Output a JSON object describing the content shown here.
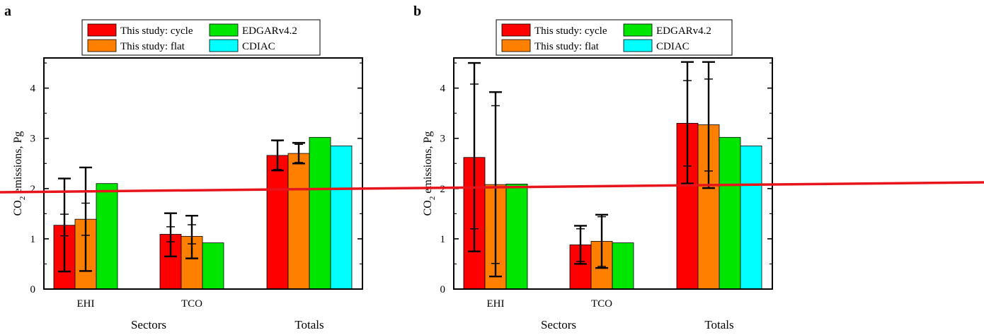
{
  "colors": {
    "cycle": "#ff0000",
    "flat": "#ff8000",
    "edgar": "#00e600",
    "cdiac": "#00ffff",
    "overlay_line": "#e8141b"
  },
  "legend": {
    "cycle": "This study: cycle",
    "flat": "This study: flat",
    "edgar": "EDGARv4.2",
    "cdiac": "CDIAC"
  },
  "chart_data": [
    {
      "panel_label": "a",
      "type": "bar",
      "categories": [
        "EHI",
        "TCO",
        "Totals"
      ],
      "group_labels": [
        "Sectors",
        "Totals"
      ],
      "ylabel": "CO2 emissions, Pg",
      "ylim": [
        0,
        4.6
      ],
      "yticks": [
        0,
        1,
        2,
        3,
        4
      ],
      "legend_position": "top-center",
      "series": [
        {
          "name": "This study: cycle",
          "key": "cycle",
          "values": [
            1.27,
            1.09,
            2.66
          ],
          "err_outer": [
            [
              0.35,
              2.2
            ],
            [
              0.65,
              1.51
            ],
            [
              2.36,
              2.96
            ]
          ],
          "err_inner": [
            [
              1.06,
              1.49
            ],
            [
              0.94,
              1.24
            ],
            [
              2.38,
              2.95
            ]
          ]
        },
        {
          "name": "This study: flat",
          "key": "flat",
          "values": [
            1.39,
            1.05,
            2.7
          ],
          "err_outer": [
            [
              0.36,
              2.42
            ],
            [
              0.61,
              1.46
            ],
            [
              2.5,
              2.91
            ]
          ],
          "err_inner": [
            [
              1.07,
              1.71
            ],
            [
              0.9,
              1.28
            ],
            [
              2.52,
              2.88
            ]
          ]
        },
        {
          "name": "EDGARv4.2",
          "key": "edgar",
          "values": [
            2.1,
            0.92,
            3.02
          ]
        },
        {
          "name": "CDIAC",
          "key": "cdiac",
          "values": [
            null,
            null,
            2.85
          ]
        }
      ]
    },
    {
      "panel_label": "b",
      "type": "bar",
      "categories": [
        "EHI",
        "TCO",
        "Totals"
      ],
      "group_labels": [
        "Sectors",
        "Totals"
      ],
      "ylabel": "CO2 emissions, Pg",
      "ylim": [
        0,
        4.6
      ],
      "yticks": [
        0,
        1,
        2,
        3,
        4
      ],
      "legend_position": "top-center",
      "series": [
        {
          "name": "This study: cycle",
          "key": "cycle",
          "values": [
            2.62,
            0.88,
            3.3
          ],
          "err_outer": [
            [
              0.75,
              4.5
            ],
            [
              0.5,
              1.26
            ],
            [
              2.1,
              4.52
            ]
          ],
          "err_inner": [
            [
              1.2,
              4.08
            ],
            [
              0.55,
              1.2
            ],
            [
              2.45,
              4.15
            ]
          ]
        },
        {
          "name": "This study: flat",
          "key": "flat",
          "values": [
            2.08,
            0.95,
            3.27
          ],
          "err_outer": [
            [
              0.25,
              3.92
            ],
            [
              0.42,
              1.48
            ],
            [
              2.01,
              4.52
            ]
          ],
          "err_inner": [
            [
              0.51,
              3.65
            ],
            [
              0.45,
              1.44
            ],
            [
              2.35,
              4.18
            ]
          ]
        },
        {
          "name": "EDGARv4.2",
          "key": "edgar",
          "values": [
            2.09,
            0.92,
            3.02
          ]
        },
        {
          "name": "CDIAC",
          "key": "cdiac",
          "values": [
            null,
            null,
            2.85
          ]
        }
      ]
    }
  ]
}
